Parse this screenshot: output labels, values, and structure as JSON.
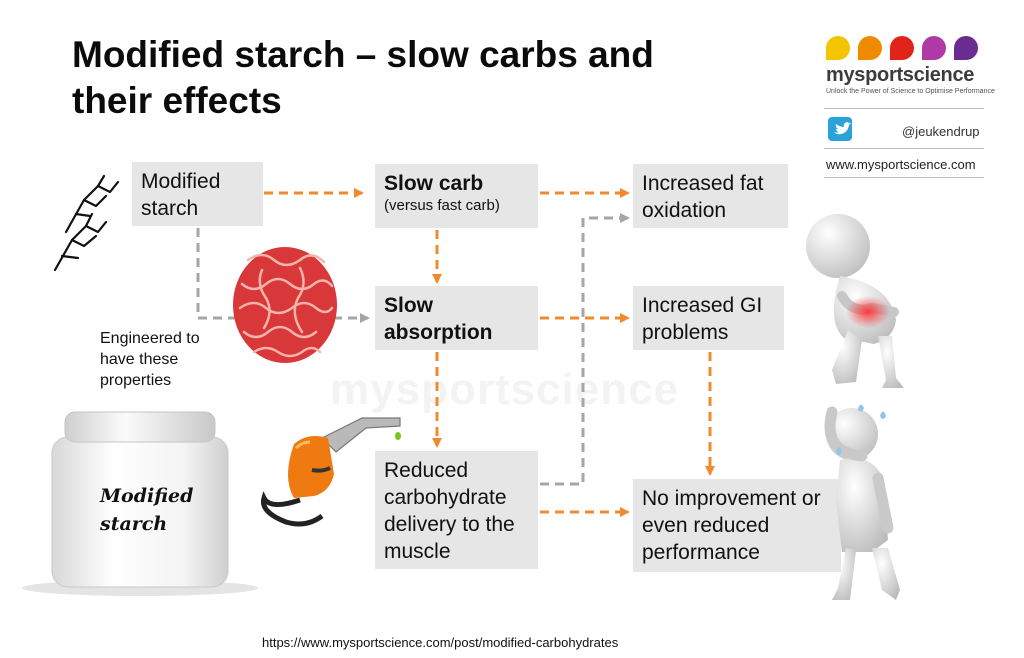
{
  "title": "Modified starch – slow carbs and their effects",
  "boxes": {
    "modified_starch": "Modified starch",
    "slow_carb": "Slow carb",
    "slow_carb_sub": "(versus fast carb)",
    "slow_absorption": "Slow absorption",
    "reduced_delivery": "Reduced carbohydrate delivery to the muscle",
    "fat_oxidation": "Increased fat oxidation",
    "gi_problems": "Increased GI problems",
    "no_improvement": "No improvement or even reduced performance"
  },
  "note": "Engineered to have these properties",
  "jar_label": "Modified starch",
  "watermark": "mysportscience",
  "brand": {
    "name": "mysportscience",
    "tagline": "Unlock the Power of Science to Optimise Performance",
    "twitter": "@jeukendrup",
    "website": "www.mysportscience.com",
    "dot_colors": [
      "#f5c400",
      "#f08a00",
      "#e2231a",
      "#b03aa5",
      "#6b2c91"
    ]
  },
  "source_url": "https://www.mysportscience.com/post/modified-carbohydrates",
  "colors": {
    "arrow_orange": "#ef8a2e",
    "arrow_gray": "#a6a6a6",
    "box_fill": "#e6e6e6"
  }
}
